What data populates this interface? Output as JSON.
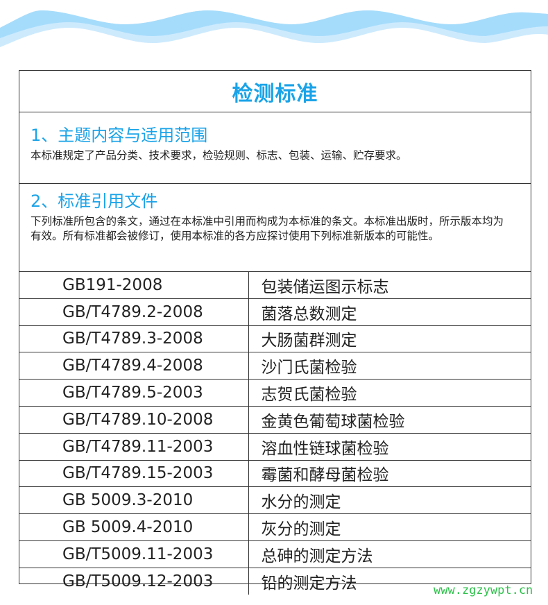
{
  "title": "检测标准",
  "sections": [
    {
      "heading": "1、主题内容与适用范围",
      "body": "本标准规定了产品分类、技术要求，检验规则、标志、包装、运输、贮存要求。"
    },
    {
      "heading": "2、标准引用文件",
      "body": "下列标准所包含的条文，通过在本标准中引用而构成为本标准的条文。本标准出版时，所示版本均为有效。所有标准都会被修订，使用本标准的各方应探讨使用下列标准新版本的可能性。"
    }
  ],
  "standards": [
    {
      "code": "GB191-2008",
      "name": "包装储运图示标志"
    },
    {
      "code": "GB/T4789.2-2008",
      "name": "菌落总数测定"
    },
    {
      "code": "GB/T4789.3-2008",
      "name": "大肠菌群测定"
    },
    {
      "code": "GB/T4789.4-2008",
      "name": "沙门氏菌检验"
    },
    {
      "code": "GB/T4789.5-2003",
      "name": "志贺氏菌检验"
    },
    {
      "code": "GB/T4789.10-2008",
      "name": "金黄色葡萄球菌检验"
    },
    {
      "code": "GB/T4789.11-2003",
      "name": "溶血性链球菌检验"
    },
    {
      "code": "GB/T4789.15-2003",
      "name": "霉菌和酵母菌检验"
    },
    {
      "code": "GB 5009.3-2010",
      "name": "水分的测定"
    },
    {
      "code": "GB 5009.4-2010",
      "name": "灰分的测定"
    },
    {
      "code": "GB/T5009.11-2003",
      "name": "总砷的测定方法"
    },
    {
      "code": "GB/T5009.12-2003",
      "name": "铅的测定方法"
    }
  ],
  "watermark": "www.zgzywpt.cn",
  "colors": {
    "accent": "#1aa3e8",
    "wave_dark": "#a6dcfb",
    "wave_light": "#cdeafd",
    "watermark": "#2dc24a"
  }
}
